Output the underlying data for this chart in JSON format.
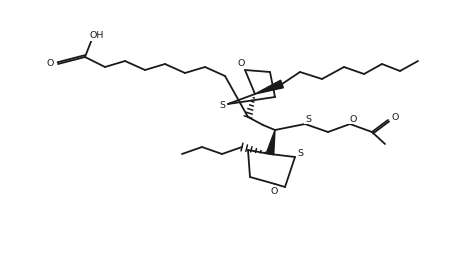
{
  "bg_color": "#ffffff",
  "line_color": "#1a1a1a",
  "line_width": 1.3,
  "figsize": [
    4.7,
    2.62
  ],
  "dpi": 100,
  "xlim": [
    0,
    47
  ],
  "ylim": [
    0,
    26.2
  ]
}
